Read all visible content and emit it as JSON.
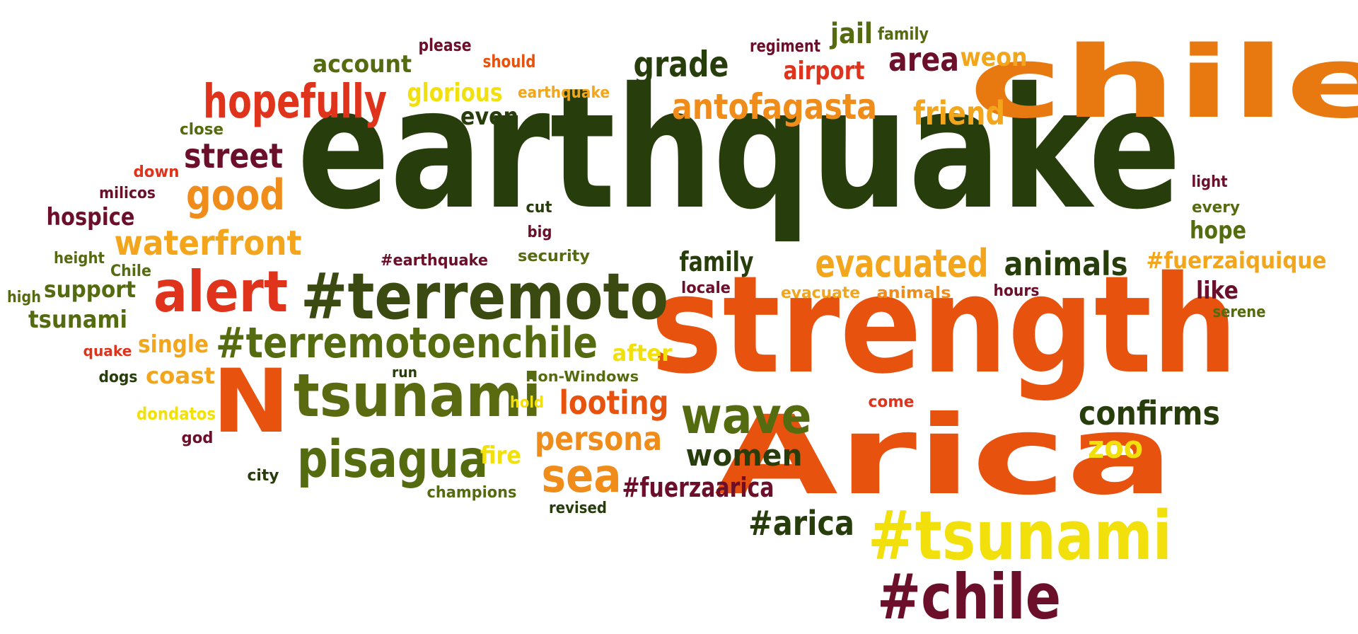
{
  "palette": {
    "dark_green": "#283d0c",
    "olive": "#556b0f",
    "maroon": "#6b0f2a",
    "red": "#e0331c",
    "orange": "#f08c1a",
    "amber": "#f3a51c",
    "yellow": "#f2e00c",
    "burnt": "#e8520f"
  },
  "words": [
    {
      "text": "earthquake",
      "color": "#283d0c"
    },
    {
      "text": "strength",
      "color": "#e8520f"
    },
    {
      "text": "Arica",
      "color": "#e8520f"
    },
    {
      "text": "chile",
      "color": "#e87810"
    },
    {
      "text": "#terremoto",
      "color": "#3b4a10"
    },
    {
      "text": "tsunami",
      "color": "#5a6a10"
    },
    {
      "text": "N",
      "color": "#e8520f"
    },
    {
      "text": "#tsunami",
      "color": "#f2e00c"
    },
    {
      "text": "#chile",
      "color": "#6b0f2a"
    },
    {
      "text": "#terremotoenchile",
      "color": "#556b0f"
    },
    {
      "text": "pisagua",
      "color": "#556b0f"
    },
    {
      "text": "alert",
      "color": "#e0331c"
    },
    {
      "text": "hopefully",
      "color": "#e0331c"
    },
    {
      "text": "waterfront",
      "color": "#f3a51c"
    },
    {
      "text": "wave",
      "color": "#556b0f"
    },
    {
      "text": "evacuated",
      "color": "#f3a51c"
    },
    {
      "text": "antofagasta",
      "color": "#f08c1a"
    },
    {
      "text": "sea",
      "color": "#f08c1a"
    },
    {
      "text": "persona",
      "color": "#f08c1a"
    },
    {
      "text": "animals",
      "color": "#283d0c"
    },
    {
      "text": "confirms",
      "color": "#283d0c"
    },
    {
      "text": "good",
      "color": "#f08c1a"
    },
    {
      "text": "looting",
      "color": "#e8520f"
    },
    {
      "text": "street",
      "color": "#6b0f2a"
    },
    {
      "text": "grade",
      "color": "#283d0c"
    },
    {
      "text": "friend",
      "color": "#f3a51c"
    },
    {
      "text": "women",
      "color": "#283d0c"
    },
    {
      "text": "#arica",
      "color": "#283d0c"
    },
    {
      "text": "#fuerzaarica",
      "color": "#6b0f2a"
    },
    {
      "text": "area",
      "color": "#6b0f2a"
    },
    {
      "text": "weon",
      "color": "#f3a51c"
    },
    {
      "text": "airport",
      "color": "#e0331c"
    },
    {
      "text": "glorious",
      "color": "#f2e00c"
    },
    {
      "text": "account",
      "color": "#556b0f"
    },
    {
      "text": "family",
      "color": "#283d0c"
    },
    {
      "text": "#fuerzaiquique",
      "color": "#f3a51c"
    },
    {
      "text": "zoo",
      "color": "#f2e00c"
    },
    {
      "text": "hope",
      "color": "#556b0f"
    },
    {
      "text": "like",
      "color": "#6b0f2a"
    },
    {
      "text": "jail",
      "color": "#556b0f"
    },
    {
      "text": "even",
      "color": "#283d0c"
    },
    {
      "text": "hospice",
      "color": "#6b0f2a"
    },
    {
      "text": "tsunami",
      "color": "#556b0f"
    },
    {
      "text": "support",
      "color": "#556b0f"
    },
    {
      "text": "single",
      "color": "#f3a51c"
    },
    {
      "text": "coast",
      "color": "#f3a51c"
    },
    {
      "text": "fire",
      "color": "#f2e00c"
    },
    {
      "text": "after",
      "color": "#f2e00c"
    },
    {
      "text": "please",
      "color": "#6b0f2a"
    },
    {
      "text": "should",
      "color": "#e8520f"
    },
    {
      "text": "earthquake",
      "color": "#f3a51c"
    },
    {
      "text": "regiment",
      "color": "#6b0f2a"
    },
    {
      "text": "family",
      "color": "#556b0f"
    },
    {
      "text": "close",
      "color": "#556b0f"
    },
    {
      "text": "down",
      "color": "#e0331c"
    },
    {
      "text": "milicos",
      "color": "#6b0f2a"
    },
    {
      "text": "height",
      "color": "#556b0f"
    },
    {
      "text": "Chile",
      "color": "#556b0f"
    },
    {
      "text": "high",
      "color": "#556b0f"
    },
    {
      "text": "quake",
      "color": "#e0331c"
    },
    {
      "text": "dogs",
      "color": "#283d0c"
    },
    {
      "text": "dondatos",
      "color": "#f2e00c"
    },
    {
      "text": "god",
      "color": "#6b0f2a"
    },
    {
      "text": "city",
      "color": "#283d0c"
    },
    {
      "text": "champions",
      "color": "#556b0f"
    },
    {
      "text": "revised",
      "color": "#283d0c"
    },
    {
      "text": "run",
      "color": "#283d0c"
    },
    {
      "text": "hold",
      "color": "#f2e00c"
    },
    {
      "text": "Non-Windows",
      "color": "#556b0f"
    },
    {
      "text": "#earthquake",
      "color": "#6b0f2a"
    },
    {
      "text": "cut",
      "color": "#283d0c"
    },
    {
      "text": "big",
      "color": "#6b0f2a"
    },
    {
      "text": "security",
      "color": "#556b0f"
    },
    {
      "text": "locale",
      "color": "#6b0f2a"
    },
    {
      "text": "evacuate",
      "color": "#f3a51c"
    },
    {
      "text": "animals",
      "color": "#f08c1a"
    },
    {
      "text": "hours",
      "color": "#6b0f2a"
    },
    {
      "text": "come",
      "color": "#e0331c"
    },
    {
      "text": "light",
      "color": "#6b0f2a"
    },
    {
      "text": "every",
      "color": "#556b0f"
    },
    {
      "text": "serene",
      "color": "#556b0f"
    }
  ]
}
